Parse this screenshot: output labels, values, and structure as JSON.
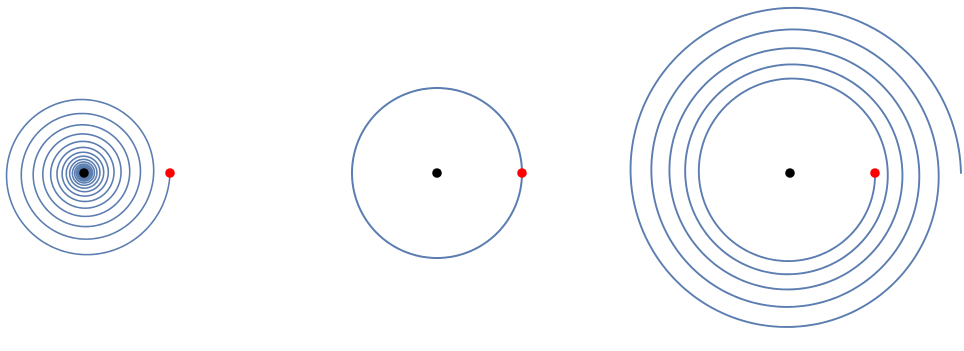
{
  "colors": {
    "background": "#ffffff",
    "curve": "#5b7db0",
    "center_point": "#000000",
    "start_point": "#ff0000"
  },
  "panels": [
    {
      "name": "inward-spiral-panel",
      "curve": "spiral-inward",
      "turns": 16,
      "radius_ratio_per_turn": 0.81,
      "markers": [
        "center-point",
        "start-point"
      ]
    },
    {
      "name": "circle-orbit-panel",
      "curve": "circle",
      "turns": 1,
      "radius_ratio_per_turn": 1.0,
      "markers": [
        "center-point",
        "start-point"
      ]
    },
    {
      "name": "outward-spiral-panel",
      "curve": "spiral-outward",
      "turns": 5,
      "radius_ratio_per_turn": 1.15,
      "markers": [
        "center-point",
        "start-point"
      ]
    }
  ]
}
